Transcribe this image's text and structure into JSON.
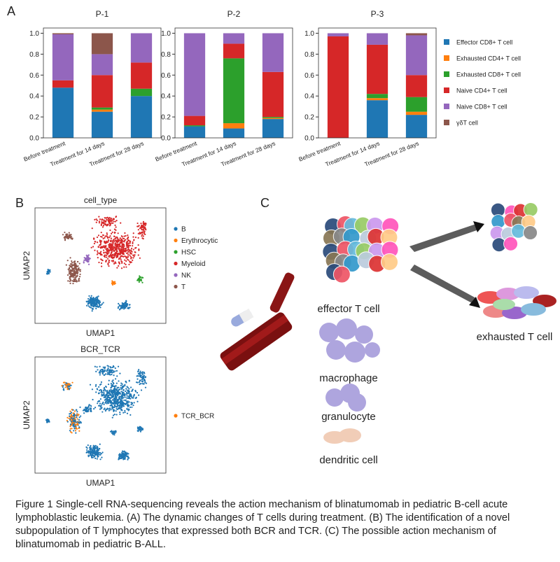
{
  "chart_data": [
    {
      "type": "bar",
      "stacked": true,
      "title": "P-1",
      "categories": [
        "Before treatment",
        "Treatment for 14 days",
        "Treatment for 28 days"
      ],
      "ylim": [
        0,
        1.05
      ],
      "yticks": [
        {
          "value": 0,
          "label": "0.0"
        },
        0.2,
        0.4,
        0.6,
        0.8,
        {
          "value": 1,
          "label": "1.0"
        }
      ],
      "series": [
        {
          "color": "#1f77b4",
          "values": [
            0.48,
            0.25,
            0.4
          ]
        },
        {
          "color": "#ff7f0e",
          "values": [
            0,
            0.02,
            0
          ]
        },
        {
          "color": "#2ca02c",
          "values": [
            0,
            0.02,
            0.07
          ]
        },
        {
          "color": "#d62728",
          "values": [
            0.07,
            0.31,
            0.25
          ]
        },
        {
          "color": "#9467bd",
          "values": [
            0.44,
            0.2,
            0.28
          ]
        },
        {
          "color": "#8c564b",
          "values": [
            0.01,
            0.2,
            0
          ]
        }
      ]
    },
    {
      "type": "bar",
      "stacked": true,
      "title": "P-2",
      "categories": [
        "Before treatment",
        "Treatment for 14 days",
        "Treatment for 28 days"
      ],
      "ylim": [
        0,
        1.05
      ],
      "yticks": [
        {
          "value": 0,
          "label": "0.0"
        },
        0.2,
        0.4,
        0.6,
        0.8,
        {
          "value": 1,
          "label": "1.0"
        }
      ],
      "series": [
        {
          "color": "#1f77b4",
          "values": [
            0.11,
            0.09,
            0.18
          ]
        },
        {
          "color": "#ff7f0e",
          "values": [
            0,
            0.05,
            0.01
          ]
        },
        {
          "color": "#2ca02c",
          "values": [
            0.01,
            0.62,
            0.01
          ]
        },
        {
          "color": "#d62728",
          "values": [
            0.09,
            0.14,
            0.43
          ]
        },
        {
          "color": "#9467bd",
          "values": [
            0.79,
            0.1,
            0.37
          ]
        },
        {
          "color": "#8c564b",
          "values": [
            0,
            0,
            0
          ]
        }
      ]
    },
    {
      "type": "bar",
      "stacked": true,
      "title": "P-3",
      "categories": [
        "Before treatment",
        "Treatment for 14 days",
        "Treatment for 28 days"
      ],
      "ylim": [
        0,
        1.05
      ],
      "yticks": [
        {
          "value": 0,
          "label": "0.0"
        },
        0.2,
        0.4,
        0.6,
        0.8,
        {
          "value": 1,
          "label": "1.0"
        }
      ],
      "series": [
        {
          "name": "Effector CD8+ T cell",
          "color": "#1f77b4",
          "values": [
            0,
            0.36,
            0.22
          ]
        },
        {
          "name": "Exhausted CD4+ T cell",
          "color": "#ff7f0e",
          "values": [
            0,
            0.02,
            0.03
          ]
        },
        {
          "name": "Exhausted CD8+ T cell",
          "color": "#2ca02c",
          "values": [
            0,
            0.04,
            0.14
          ]
        },
        {
          "name": "Naive CD4+ T cell",
          "color": "#d62728",
          "values": [
            0.97,
            0.47,
            0.21
          ]
        },
        {
          "name": "Naive CD8+ T cell",
          "color": "#9467bd",
          "values": [
            0.03,
            0.11,
            0.38
          ]
        },
        {
          "name": "γδT cell",
          "color": "#8c564b",
          "values": [
            0,
            0,
            0.02
          ]
        }
      ]
    }
  ],
  "panel_labels": [
    "A",
    "B",
    "C"
  ],
  "panel_b": {
    "plots": [
      {
        "title": "cell_type",
        "xlabel": "UMAP1",
        "ylabel": "UMAP2",
        "legend": [
          {
            "name": "B",
            "color": "#1f77b4"
          },
          {
            "name": "Erythrocytic",
            "color": "#ff7f0e"
          },
          {
            "name": "HSC",
            "color": "#2ca02c"
          },
          {
            "name": "Myeloid",
            "color": "#d62728"
          },
          {
            "name": "NK",
            "color": "#9467bd"
          },
          {
            "name": "T",
            "color": "#8c564b"
          }
        ]
      },
      {
        "title": "BCR_TCR",
        "xlabel": "UMAP1",
        "ylabel": "UMAP2",
        "legend": [
          {
            "name": "TCR_BCR",
            "color": "#ff7f0e"
          }
        ]
      }
    ]
  },
  "panel_c": {
    "labels": [
      "effector T cell",
      "macrophage",
      "granulocyte",
      "dendritic cell",
      "exhausted T cell"
    ]
  },
  "caption": "Figure 1 Single-cell RNA-sequencing reveals the action mechanism of blinatumomab in pediatric B-cell acute lymphoblastic leukemia. (A) The dynamic changes of T cells during treatment. (B) The identification of a novel subpopulation of T lymphocytes that expressed both BCR and TCR. (C) The possible action mechanism of blinatumomab in pediatric B-ALL."
}
